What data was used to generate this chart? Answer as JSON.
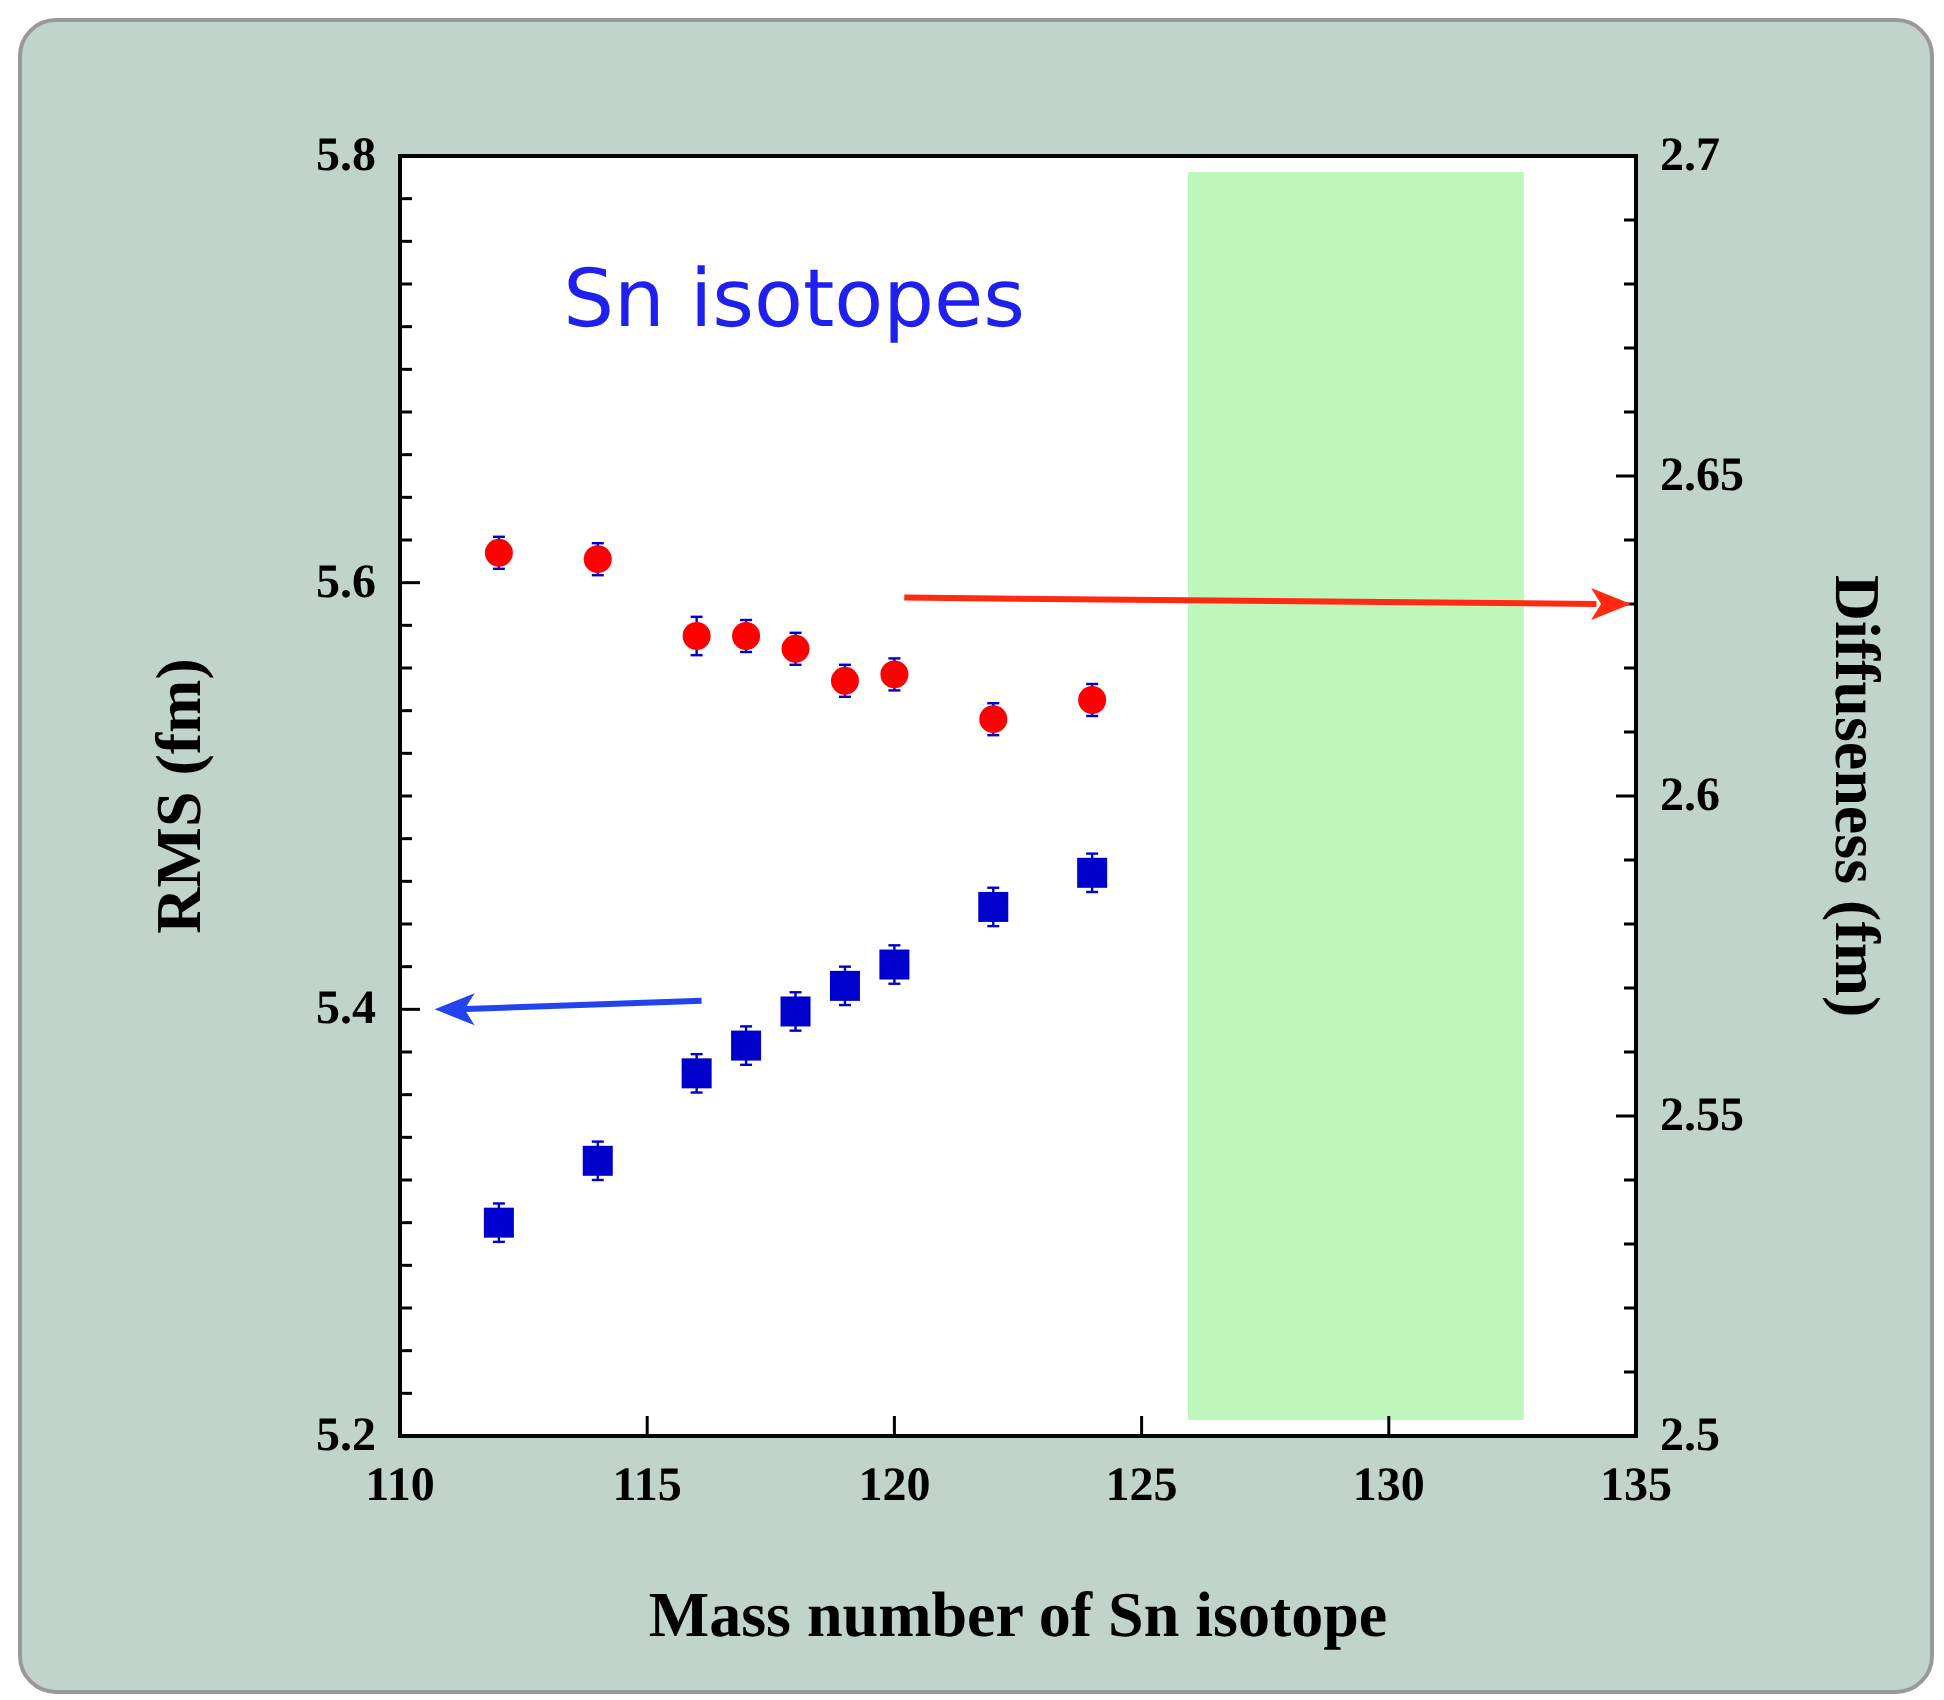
{
  "chart_data": {
    "type": "scatter",
    "xlabel": "Mass number of Sn isotope",
    "ylabel": "RMS (fm)",
    "y2label": "Diffuseness (fm)",
    "annotations": [
      "Sn isotopes"
    ],
    "xlim": [
      110,
      135
    ],
    "xticks": [
      110,
      115,
      120,
      125,
      130,
      135
    ],
    "ylim": [
      5.2,
      5.8
    ],
    "yticks": [
      5.2,
      5.4,
      5.6,
      5.8
    ],
    "y2lim": [
      2.5,
      2.7
    ],
    "y2ticks": [
      2.5,
      2.55,
      2.6,
      2.65,
      2.7
    ],
    "x": [
      112,
      114,
      116,
      117,
      118,
      119,
      120,
      122,
      124
    ],
    "series": [
      {
        "color": "#ff0000",
        "axis": "y2",
        "marker": "circle",
        "values": [
          2.638,
          2.637,
          2.625,
          2.625,
          2.623,
          2.618,
          2.619,
          2.612,
          2.615
        ],
        "errors": [
          0.0025,
          0.0025,
          0.003,
          0.0025,
          0.0025,
          0.0025,
          0.0025,
          0.0025,
          0.0025
        ]
      },
      {
        "color": "#0000cc",
        "axis": "y",
        "marker": "square",
        "values": [
          5.3,
          5.329,
          5.37,
          5.383,
          5.399,
          5.411,
          5.421,
          5.448,
          5.464
        ],
        "errors": [
          0.009,
          0.009,
          0.009,
          0.009,
          0.009,
          0.009,
          0.009,
          0.009,
          0.009
        ]
      }
    ],
    "bands": [
      {
        "axis": "x",
        "from": 125.94,
        "to": 132.73,
        "color": "#bdf7bc"
      }
    ],
    "grid": false
  }
}
